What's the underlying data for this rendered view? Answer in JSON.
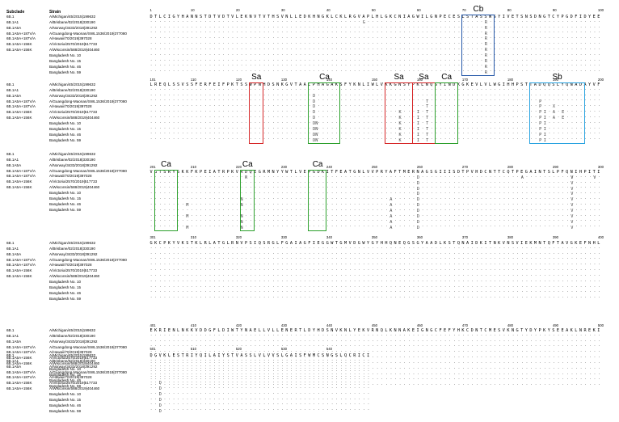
{
  "headers": {
    "subclade": "Subclade",
    "strain": "Strain"
  },
  "rows": [
    {
      "subclade": "6B.1",
      "strain": "A/Michigan/45/2015|199632"
    },
    {
      "subclade": "6B.1A1",
      "strain": "A/Brisbane/02/2018|330190"
    },
    {
      "subclade": "6B.1A5A",
      "strain": "A/Norway/3433/2018|391292"
    },
    {
      "subclade": "6B.1A5A+187V/A",
      "strain": "A/Guangdong-Maonan/SWL1536/2019|377080"
    },
    {
      "subclade": "6B.1A5A+187V/A",
      "strain": "A/Hawaii/70/2019|397028"
    },
    {
      "subclade": "6B.1A5A+156K",
      "strain": "A/Victoria/2570/2019|517733"
    },
    {
      "subclade": "6B.1A5A+156K",
      "strain": "A/Wisconsin/588/2019|404460"
    },
    {
      "subclade": "",
      "strain": "Bangladesh No. 10"
    },
    {
      "subclade": "",
      "strain": "Bangladesh No. 15"
    },
    {
      "subclade": "",
      "strain": "Bangladesh No. 46"
    },
    {
      "subclade": "",
      "strain": "Bangladesh No. 59"
    }
  ],
  "blocks": [
    {
      "ticks": [
        "1",
        "10",
        "20",
        "30",
        "40",
        "50",
        "60",
        "70",
        "80",
        "90",
        "100"
      ],
      "ref": "DTLCIGYHANNSTDTVDTVLEKNVTVTHSVNLLEDKHNGKLCKLRGVAPLHLGKCNIAGWILGNPECESLSTASSWSYIVETSNSDNGTCYPGDFIDYEE",
      "mut_lines": [
        "",
        "",
        "",
        "",
        "",
        "",
        "",
        "",
        "",
        "",
        ""
      ],
      "mutations": [
        {
          "row": 1,
          "col": 47,
          "aa": "G"
        },
        {
          "row": 1,
          "col": 74,
          "aa": "R"
        },
        {
          "row": 2,
          "col": 74,
          "aa": "R"
        },
        {
          "row": 3,
          "col": 74,
          "aa": "R"
        },
        {
          "row": 4,
          "col": 74,
          "aa": "R"
        },
        {
          "row": 5,
          "col": 74,
          "aa": "R"
        },
        {
          "row": 6,
          "col": 74,
          "aa": "R"
        },
        {
          "row": 7,
          "col": 74,
          "aa": "R"
        },
        {
          "row": 8,
          "col": 74,
          "aa": "R"
        },
        {
          "row": 9,
          "col": 74,
          "aa": "R"
        },
        {
          "row": 10,
          "col": 74,
          "aa": "R"
        }
      ],
      "sites": [
        {
          "name": "Cb",
          "start": 69,
          "end": 75,
          "color": "#2457a8"
        }
      ]
    },
    {
      "ticks": [
        "101",
        "110",
        "120",
        "130",
        "140",
        "150",
        "160",
        "170",
        "180",
        "190",
        "200"
      ],
      "ref": "LREQLSSVSSFERFEIFPKTSSWPNHDSNKGVTAACPHAGAKSFYKNLIWLVKKGNSYPKLNQSYINDKGKEVLVLWGIHHPSTTADQQSLYQNADAYVF",
      "mutations": [
        {
          "row": 2,
          "col": 36,
          "aa": "D"
        },
        {
          "row": 3,
          "col": 36,
          "aa": "D"
        },
        {
          "row": 4,
          "col": 36,
          "aa": "D"
        },
        {
          "row": 5,
          "col": 36,
          "aa": "D"
        },
        {
          "row": 6,
          "col": 36,
          "aa": "D"
        },
        {
          "row": 7,
          "col": 36,
          "aa": "DN"
        },
        {
          "row": 8,
          "col": 36,
          "aa": "DN"
        },
        {
          "row": 9,
          "col": 36,
          "aa": "DN"
        },
        {
          "row": 10,
          "col": 36,
          "aa": "DN"
        },
        {
          "row": 5,
          "col": 55,
          "aa": "K"
        },
        {
          "row": 6,
          "col": 55,
          "aa": "K"
        },
        {
          "row": 7,
          "col": 55,
          "aa": "K"
        },
        {
          "row": 8,
          "col": 55,
          "aa": "K"
        },
        {
          "row": 9,
          "col": 55,
          "aa": "K"
        },
        {
          "row": 10,
          "col": 55,
          "aa": "K"
        },
        {
          "row": 3,
          "col": 61,
          "aa": "T"
        },
        {
          "row": 4,
          "col": 61,
          "aa": "T"
        },
        {
          "row": 5,
          "col": 61,
          "aa": "T"
        },
        {
          "row": 6,
          "col": 61,
          "aa": "T"
        },
        {
          "row": 7,
          "col": 61,
          "aa": "T"
        },
        {
          "row": 8,
          "col": 61,
          "aa": "T"
        },
        {
          "row": 9,
          "col": 61,
          "aa": "T"
        },
        {
          "row": 10,
          "col": 61,
          "aa": "T"
        },
        {
          "row": 5,
          "col": 59,
          "aa": "I"
        },
        {
          "row": 6,
          "col": 59,
          "aa": "I"
        },
        {
          "row": 7,
          "col": 59,
          "aa": "I"
        },
        {
          "row": 8,
          "col": 59,
          "aa": "I"
        },
        {
          "row": 9,
          "col": 59,
          "aa": "I"
        },
        {
          "row": 10,
          "col": 59,
          "aa": "I"
        },
        {
          "row": 3,
          "col": 86,
          "aa": "P"
        },
        {
          "row": 4,
          "col": 86,
          "aa": "P"
        },
        {
          "row": 5,
          "col": 86,
          "aa": "P"
        },
        {
          "row": 6,
          "col": 86,
          "aa": "P"
        },
        {
          "row": 7,
          "col": 86,
          "aa": "P"
        },
        {
          "row": 8,
          "col": 86,
          "aa": "P"
        },
        {
          "row": 9,
          "col": 86,
          "aa": "P"
        },
        {
          "row": 10,
          "col": 86,
          "aa": "P"
        },
        {
          "row": 4,
          "col": 89,
          "aa": "X"
        },
        {
          "row": 5,
          "col": 87,
          "aa": "I"
        },
        {
          "row": 6,
          "col": 87,
          "aa": "I"
        },
        {
          "row": 7,
          "col": 87,
          "aa": "I"
        },
        {
          "row": 8,
          "col": 87,
          "aa": "I"
        },
        {
          "row": 9,
          "col": 87,
          "aa": "I"
        },
        {
          "row": 10,
          "col": 87,
          "aa": "I"
        },
        {
          "row": 5,
          "col": 89,
          "aa": "A"
        },
        {
          "row": 6,
          "col": 89,
          "aa": "A"
        },
        {
          "row": 5,
          "col": 91,
          "aa": "E"
        },
        {
          "row": 6,
          "col": 91,
          "aa": "E"
        }
      ],
      "sites": [
        {
          "name": "Sa",
          "start": 22,
          "end": 24,
          "color": "#d62728"
        },
        {
          "name": "Ca",
          "start": 35,
          "end": 41,
          "color": "#2ca02c"
        },
        {
          "name": "Sa",
          "start": 52,
          "end": 57,
          "color": "#d62728"
        },
        {
          "name": "Sa",
          "start": 58,
          "end": 62,
          "color": "#d62728"
        },
        {
          "name": "Ca",
          "start": 63,
          "end": 67,
          "color": "#2ca02c"
        },
        {
          "name": "Sb",
          "start": 84,
          "end": 95,
          "color": "#29a3e0"
        }
      ]
    },
    {
      "ticks": [
        "201",
        "210",
        "220",
        "230",
        "240",
        "250",
        "260",
        "270",
        "280",
        "290",
        "300"
      ],
      "ref": "VGTSRYSKKFKPEIATRPKVRDQEGRMNYYWTLVEPGDKITFEATGNLVVPRYAFTMERNAGSGIIISDTPVHDCNTTCQTPEGAINTSLPFQNIHPITI",
      "mutations": [
        {
          "row": 0,
          "col": 21,
          "aa": "R"
        },
        {
          "row": 6,
          "col": 8,
          "aa": "M"
        },
        {
          "row": 8,
          "col": 8,
          "aa": "M"
        },
        {
          "row": 10,
          "col": 8,
          "aa": "M"
        },
        {
          "row": 5,
          "col": 20,
          "aa": "N"
        },
        {
          "row": 6,
          "col": 20,
          "aa": "N"
        },
        {
          "row": 8,
          "col": 20,
          "aa": "N"
        },
        {
          "row": 9,
          "col": 20,
          "aa": "N"
        },
        {
          "row": 10,
          "col": 20,
          "aa": "N"
        },
        {
          "row": 5,
          "col": 53,
          "aa": "A"
        },
        {
          "row": 6,
          "col": 53,
          "aa": "A"
        },
        {
          "row": 7,
          "col": 53,
          "aa": "A"
        },
        {
          "row": 8,
          "col": 53,
          "aa": "A"
        },
        {
          "row": 9,
          "col": 53,
          "aa": "A"
        },
        {
          "row": 10,
          "col": 53,
          "aa": "A"
        },
        {
          "row": 1,
          "col": 59,
          "aa": "D"
        },
        {
          "row": 2,
          "col": 59,
          "aa": "D"
        },
        {
          "row": 3,
          "col": 59,
          "aa": "D"
        },
        {
          "row": 4,
          "col": 59,
          "aa": "D"
        },
        {
          "row": 5,
          "col": 59,
          "aa": "D"
        },
        {
          "row": 6,
          "col": 59,
          "aa": "D"
        },
        {
          "row": 7,
          "col": 59,
          "aa": "D"
        },
        {
          "row": 8,
          "col": 59,
          "aa": "D"
        },
        {
          "row": 9,
          "col": 59,
          "aa": "D"
        },
        {
          "row": 10,
          "col": 59,
          "aa": "D"
        },
        {
          "row": 0,
          "col": 82,
          "aa": "A"
        },
        {
          "row": 0,
          "col": 93,
          "aa": "V"
        },
        {
          "row": 0,
          "col": 98,
          "aa": "V"
        },
        {
          "row": 1,
          "col": 93,
          "aa": "V"
        },
        {
          "row": 2,
          "col": 93,
          "aa": "V"
        },
        {
          "row": 3,
          "col": 93,
          "aa": "V"
        },
        {
          "row": 4,
          "col": 93,
          "aa": "V"
        },
        {
          "row": 5,
          "col": 93,
          "aa": "V"
        },
        {
          "row": 6,
          "col": 93,
          "aa": "V"
        },
        {
          "row": 7,
          "col": 93,
          "aa": "V"
        },
        {
          "row": 8,
          "col": 93,
          "aa": "V"
        },
        {
          "row": 9,
          "col": 93,
          "aa": "V"
        },
        {
          "row": 10,
          "col": 93,
          "aa": "V"
        }
      ],
      "sites": [
        {
          "name": "Ca",
          "start": 1,
          "end": 5,
          "color": "#2ca02c"
        },
        {
          "name": "Ca",
          "start": 20,
          "end": 22,
          "color": "#2ca02c"
        },
        {
          "name": "Ca",
          "start": 35,
          "end": 38,
          "color": "#2ca02c"
        }
      ]
    },
    {
      "ticks": [
        "301",
        "310",
        "320",
        "330",
        "340",
        "350",
        "360",
        "370",
        "380",
        "390",
        "400"
      ],
      "ref": "GKCPKYVKSTKLRLATGLRNVPSIQSRGLFGAIAGFIEGGWTGMVDGWYGYHHQNEQGSGYAADLKSTQNAIDKITNKVNSVIEKMNTQFTAVGKEFNHL",
      "mutations": [],
      "sites": []
    },
    {
      "ticks": [
        "401",
        "410",
        "420",
        "430",
        "440",
        "450",
        "460",
        "470",
        "480",
        "490",
        "500"
      ],
      "ref": "EKRIENLNKKVDDGFLDIWTYNAELLVLLENERTLDYHDSNVKNLYEKVRNQLKNNAKEIGNGCFEFYHKCDNTCMESVKNGTYDYPKYSEEAKLNREKI",
      "mutations": [],
      "sites": []
    },
    {
      "ticks": [
        "501",
        "510",
        "520",
        "530",
        "540"
      ],
      "ref": "DGVKLESTRIYQILAIYSTVASSLVLVVSLGAISFWMCSNGSLQCRICI",
      "mutations": [
        {
          "row": 5,
          "col": 2,
          "aa": "D"
        },
        {
          "row": 6,
          "col": 2,
          "aa": "D"
        },
        {
          "row": 7,
          "col": 2,
          "aa": "D"
        },
        {
          "row": 8,
          "col": 2,
          "aa": "D"
        },
        {
          "row": 9,
          "col": 2,
          "aa": "D"
        },
        {
          "row": 10,
          "col": 2,
          "aa": "D"
        }
      ],
      "sites": []
    }
  ]
}
